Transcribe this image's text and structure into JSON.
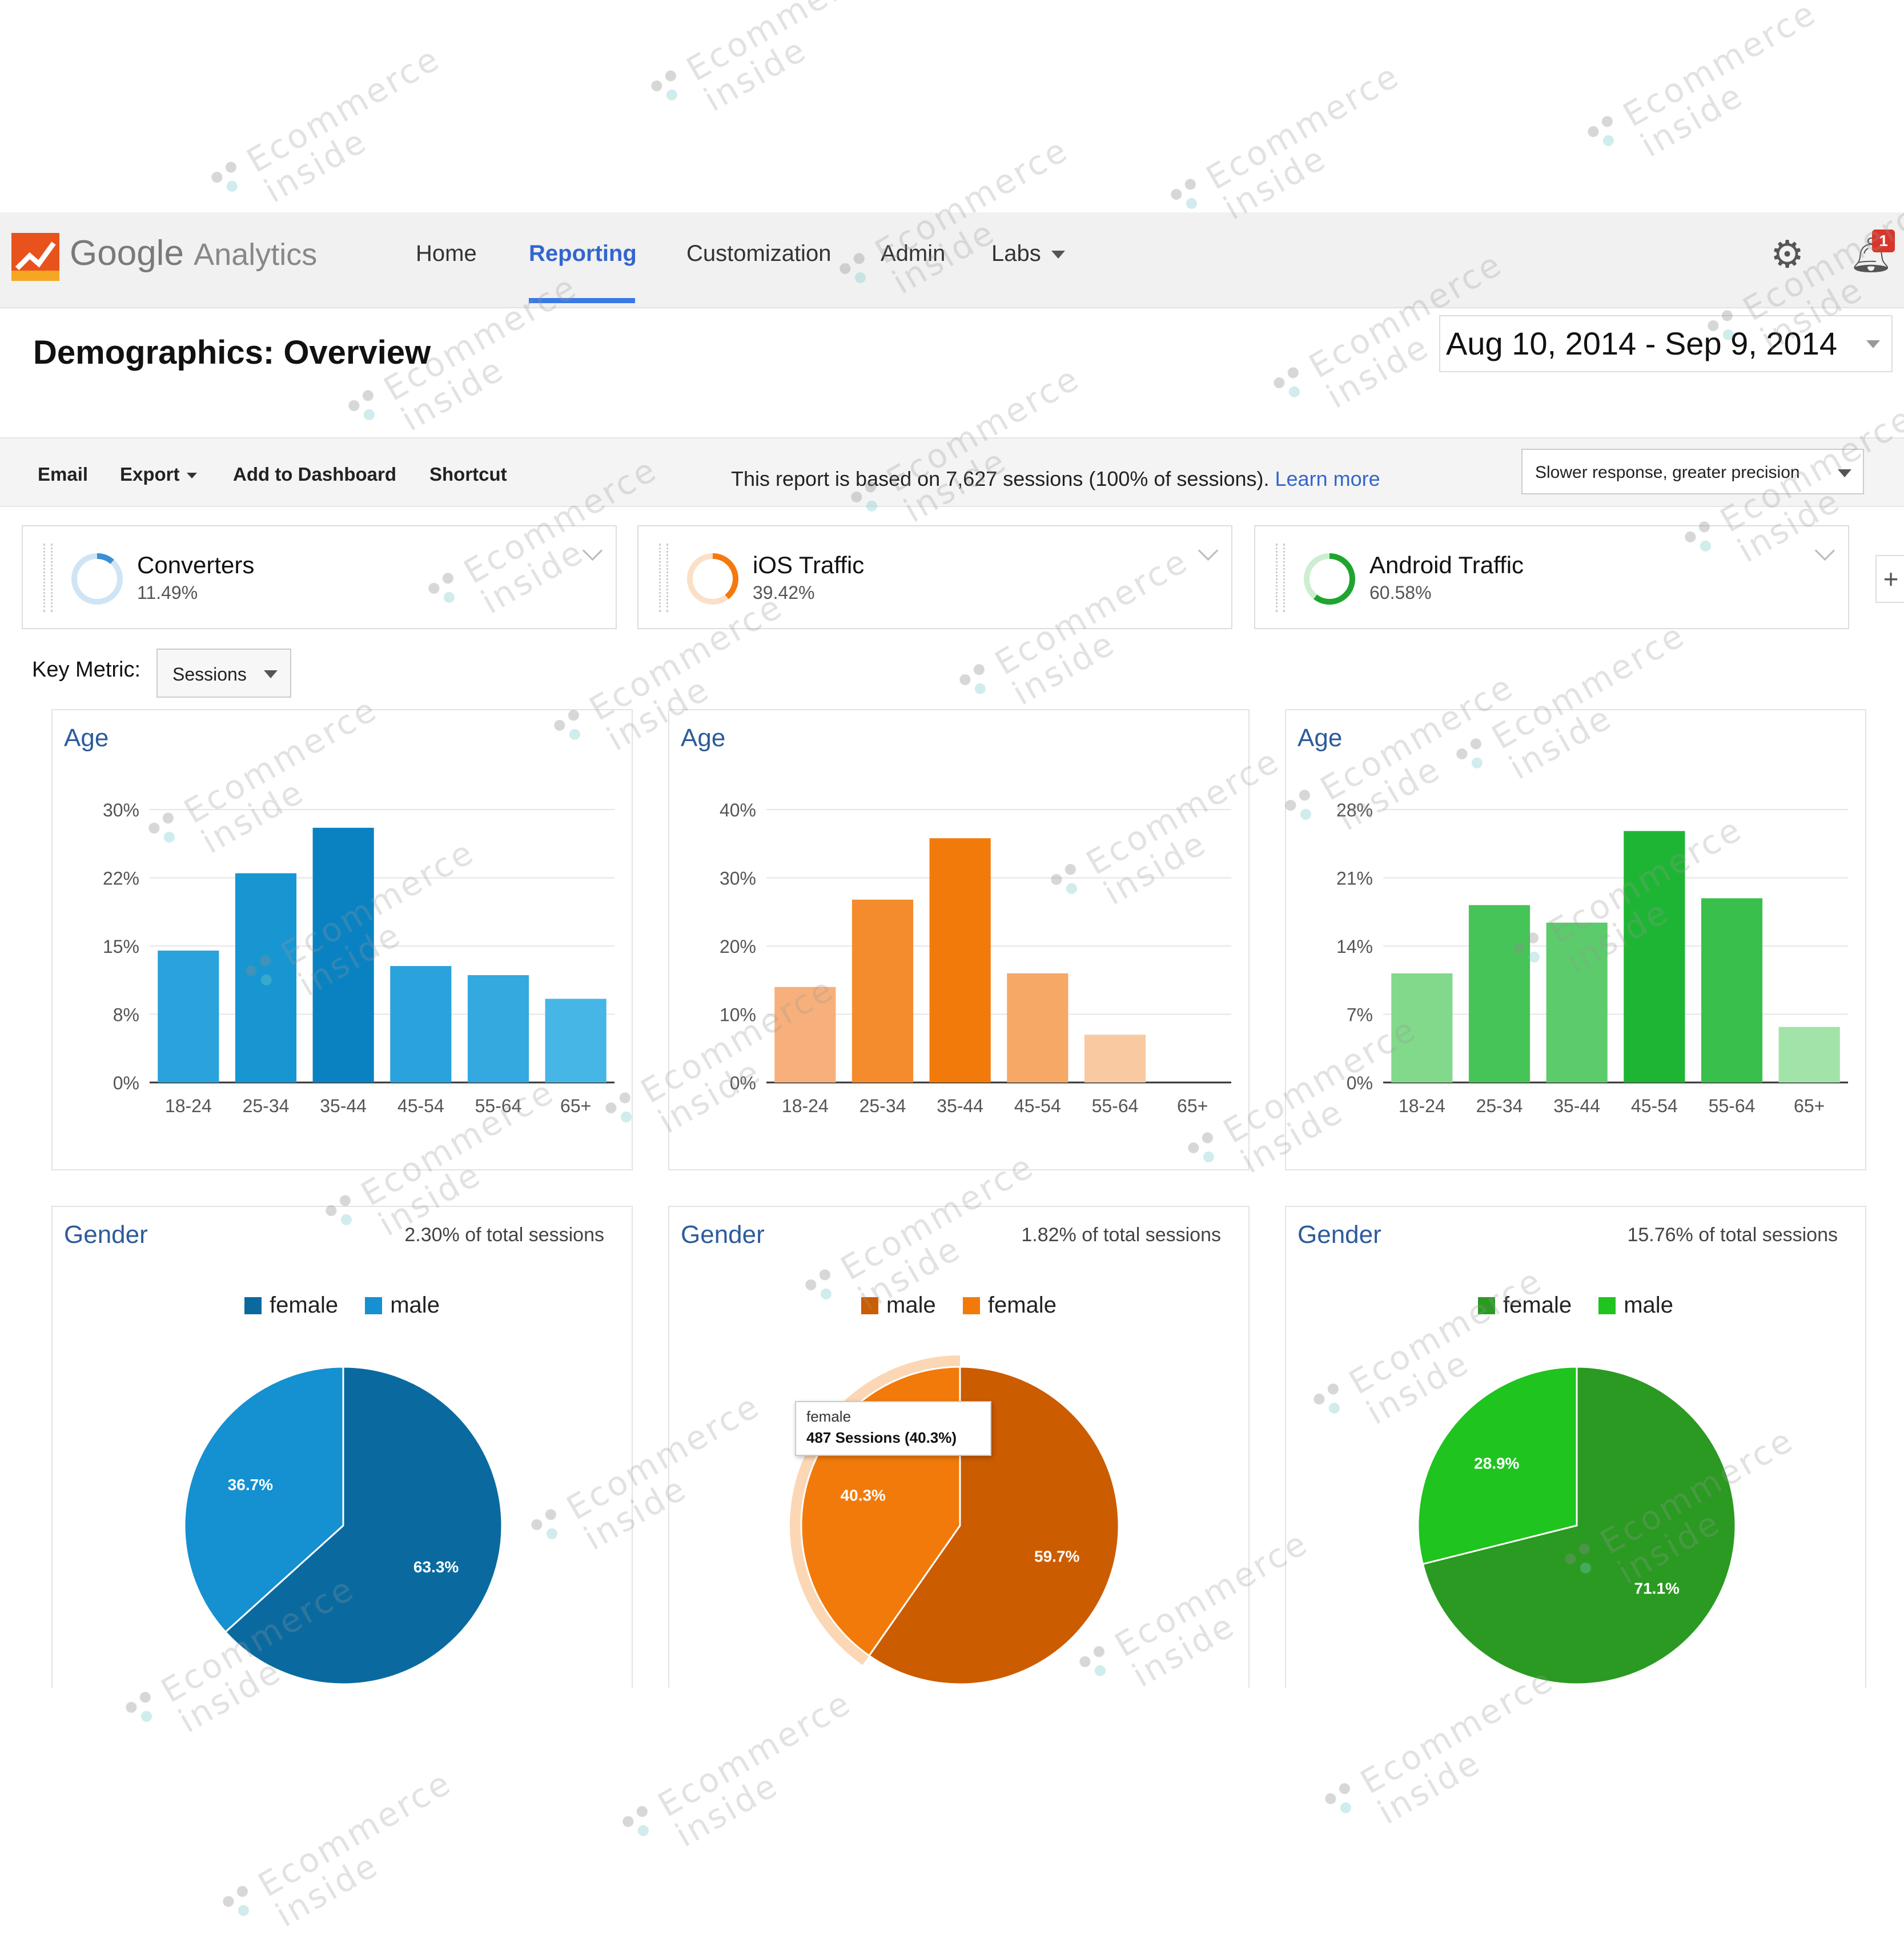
{
  "watermark": {
    "line1": "Ecommerce",
    "line2": "inside"
  },
  "app": {
    "logo": {
      "word1": "Google",
      "word2": "Analytics"
    },
    "nav": [
      {
        "label": "Home",
        "active": false
      },
      {
        "label": "Reporting",
        "active": true
      },
      {
        "label": "Customization",
        "active": false
      },
      {
        "label": "Admin",
        "active": false
      },
      {
        "label": "Labs",
        "active": false
      }
    ],
    "notifications_count": "1",
    "page_title": "Demographics: Overview",
    "date_range": "Aug 10, 2014 - Sep 9, 2014",
    "toolbar": {
      "email": "Email",
      "export": "Export",
      "add_to_dashboard": "Add to Dashboard",
      "shortcut": "Shortcut"
    },
    "report_info": {
      "text": "This report is based on 7,627 sessions (100% of sessions).",
      "link": "Learn more"
    },
    "precision_select": "Slower response, greater precision",
    "segments": [
      {
        "name": "Converters",
        "value": "11.49%",
        "percent": 11.49,
        "color": "#3b8fd4",
        "track": "#cfe4f4"
      },
      {
        "name": "iOS Traffic",
        "value": "39.42%",
        "percent": 39.42,
        "color": "#f5790d",
        "track": "#fbe0c7"
      },
      {
        "name": "Android Traffic",
        "value": "60.58%",
        "percent": 60.58,
        "color": "#1fa52f",
        "track": "#cdeed1"
      }
    ],
    "key_metric": {
      "label": "Key Metric:",
      "value": "Sessions"
    }
  },
  "chart_data": [
    {
      "type": "bar",
      "title": "Age",
      "segment": "Converters",
      "categories": [
        "18-24",
        "25-34",
        "35-44",
        "45-54",
        "55-64",
        "65+"
      ],
      "values": [
        14.5,
        23,
        28,
        12.8,
        11.8,
        9.2
      ],
      "ylim": [
        0,
        30
      ],
      "yticks": [
        "0%",
        "8%",
        "15%",
        "22%",
        "30%"
      ],
      "colors": [
        "#2aa2dc",
        "#1796d2",
        "#0a82c2",
        "#2aa2dc",
        "#33a9df",
        "#45b6e6"
      ]
    },
    {
      "type": "bar",
      "title": "Age",
      "segment": "iOS Traffic",
      "categories": [
        "18-24",
        "25-34",
        "35-44",
        "45-54",
        "55-64",
        "65+"
      ],
      "values": [
        14,
        26.8,
        35.8,
        16,
        7,
        0
      ],
      "ylim": [
        0,
        40
      ],
      "yticks": [
        "0%",
        "10%",
        "20%",
        "30%",
        "40%"
      ],
      "colors": [
        "#f7b07b",
        "#f48b2c",
        "#f27a0b",
        "#f6a866",
        "#f9c9a1",
        "#f9c9a1"
      ]
    },
    {
      "type": "bar",
      "title": "Age",
      "segment": "Android Traffic",
      "categories": [
        "18-24",
        "25-34",
        "35-44",
        "45-54",
        "55-64",
        "65+"
      ],
      "values": [
        11.2,
        18.2,
        16.4,
        25.8,
        18.9,
        5.7
      ],
      "ylim": [
        0,
        28
      ],
      "yticks": [
        "0%",
        "7%",
        "14%",
        "21%",
        "28%"
      ],
      "colors": [
        "#82d98b",
        "#46c457",
        "#5ccb6b",
        "#1fb534",
        "#39c04c",
        "#a1e3a8"
      ]
    },
    {
      "type": "pie",
      "title": "Gender",
      "subtitle": "2.30% of total sessions",
      "legend": [
        {
          "name": "female",
          "color": "#0a6aa0"
        },
        {
          "name": "male",
          "color": "#1590d0"
        }
      ],
      "slices": [
        {
          "name": "female",
          "value": 63.3,
          "label": "63.3%",
          "color": "#0a6aa0"
        },
        {
          "name": "male",
          "value": 36.7,
          "label": "36.7%",
          "color": "#1590d0"
        }
      ]
    },
    {
      "type": "pie",
      "title": "Gender",
      "subtitle": "1.82% of total sessions",
      "legend": [
        {
          "name": "male",
          "color": "#cc5c00"
        },
        {
          "name": "female",
          "color": "#f27a0b"
        }
      ],
      "slices": [
        {
          "name": "male",
          "value": 59.7,
          "label": "59.7%",
          "color": "#cc5c00"
        },
        {
          "name": "female",
          "value": 40.3,
          "label": "40.3%",
          "color": "#f27a0b",
          "highlight": true
        }
      ],
      "tooltip": {
        "line1": "female",
        "line2": "487 Sessions (40.3%)"
      }
    },
    {
      "type": "pie",
      "title": "Gender",
      "subtitle": "15.76% of total sessions",
      "legend": [
        {
          "name": "female",
          "color": "#2a9a22"
        },
        {
          "name": "male",
          "color": "#1fc41f"
        }
      ],
      "slices": [
        {
          "name": "female",
          "value": 71.1,
          "label": "71.1%",
          "color": "#2a9a22"
        },
        {
          "name": "male",
          "value": 28.9,
          "label": "28.9%",
          "color": "#1fc41f"
        }
      ]
    }
  ]
}
